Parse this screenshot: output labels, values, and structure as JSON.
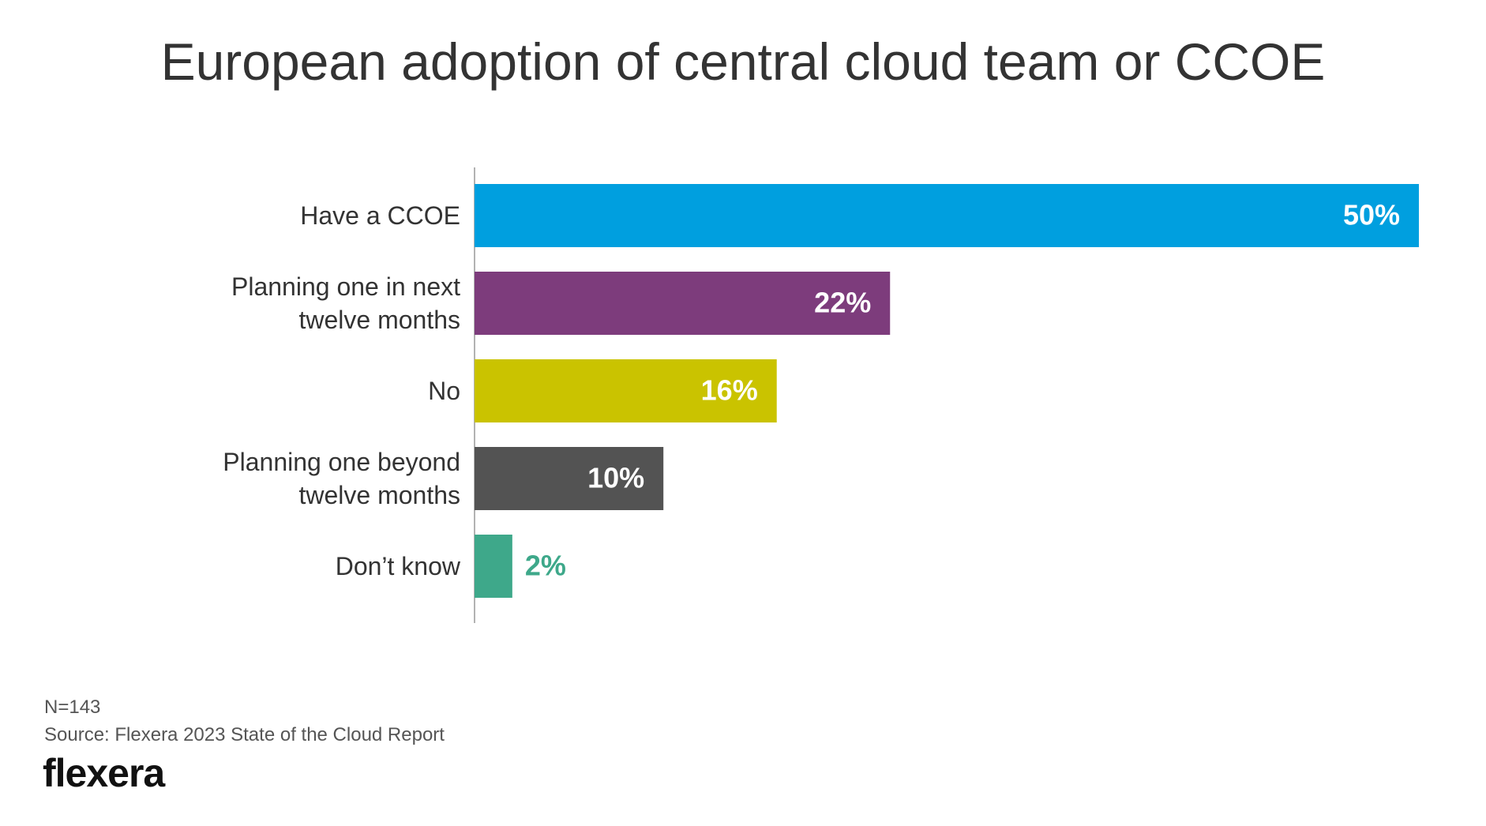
{
  "chart_data": {
    "type": "bar",
    "orientation": "horizontal",
    "title": "European adoption of central cloud team or CCOE",
    "categories": [
      "Have a CCOE",
      "Planning one in next twelve months",
      "No",
      "Planning one beyond twelve months",
      "Don’t know"
    ],
    "series": [
      {
        "name": null,
        "colors": [
          "#009fdf",
          "#7d3c7c",
          "#cac300",
          "#535353",
          "#3ea88a"
        ],
        "values": [
          50,
          22,
          16,
          10,
          2
        ],
        "value_labels": [
          "50%",
          "22%",
          "16%",
          "10%",
          "2%"
        ]
      }
    ]
  },
  "footer": {
    "note": "N=143",
    "source": "Source: Flexera 2023 State of the Cloud Report",
    "logo": "flexera"
  }
}
